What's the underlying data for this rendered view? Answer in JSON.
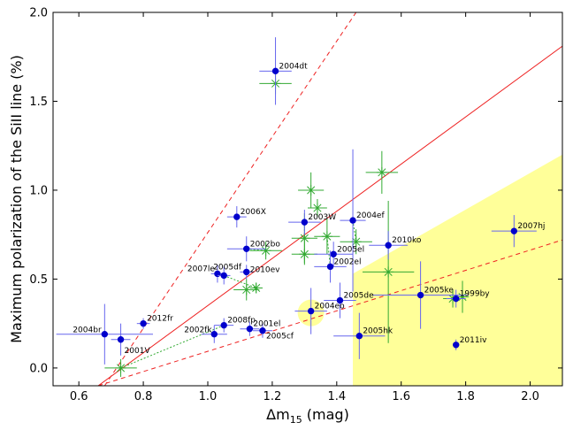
{
  "chart_data": {
    "type": "scatter",
    "xlabel": "Δm",
    "xlabel_sub": "15",
    "xlabel_unit": " (mag)",
    "ylabel": "Maximum polarization of the SiII line (%)",
    "xlim": [
      0.52,
      2.1
    ],
    "ylim": [
      -0.1,
      2.0
    ],
    "xticks": [
      0.6,
      0.8,
      1.0,
      1.2,
      1.4,
      1.6,
      1.8,
      2.0
    ],
    "yticks": [
      0.0,
      0.5,
      1.0,
      1.5,
      2.0
    ],
    "xtick_labels": [
      "0.6",
      "0.8",
      "1.0",
      "1.2",
      "1.4",
      "1.6",
      "1.8",
      "2.0"
    ],
    "ytick_labels": [
      "0.0",
      "0.5",
      "1.0",
      "1.5",
      "2.0"
    ],
    "colors": {
      "blue": "#0000cc",
      "blue_err": "#6666ee",
      "green": "#33aa33",
      "red": "#ee2222",
      "yellow": "#ffff99"
    },
    "lines": [
      {
        "name": "fit",
        "style": "solid",
        "x": [
          0.66,
          2.1
        ],
        "y": [
          -0.1,
          1.81
        ]
      },
      {
        "name": "upper",
        "style": "dashed",
        "x": [
          0.68,
          1.46
        ],
        "y": [
          -0.1,
          2.0
        ]
      },
      {
        "name": "lower",
        "style": "dashed",
        "x": [
          0.66,
          2.1
        ],
        "y": [
          -0.1,
          0.72
        ]
      }
    ],
    "region": {
      "x": [
        1.45,
        2.1,
        2.1,
        1.45
      ],
      "y": [
        -0.1,
        -0.1,
        1.2,
        0.53
      ]
    },
    "circle": {
      "x": 1.32,
      "y": 0.31
    },
    "points": [
      {
        "name": "2004dt",
        "x": 1.21,
        "y": 1.67,
        "xerr": 0.05,
        "yerr": 0.19
      },
      {
        "name": "2006X",
        "x": 1.09,
        "y": 0.85,
        "xerr": 0.03,
        "yerr": 0.06
      },
      {
        "name": "2003W",
        "x": 1.3,
        "y": 0.82,
        "xerr": 0.05,
        "yerr": 0.07
      },
      {
        "name": "2004ef",
        "x": 1.45,
        "y": 0.83,
        "xerr": 0.04,
        "yerr": 0.4
      },
      {
        "name": "2002bo",
        "x": 1.12,
        "y": 0.67,
        "xerr": 0.06,
        "yerr": 0.07
      },
      {
        "name": "2005el",
        "x": 1.39,
        "y": 0.64,
        "xerr": 0.06,
        "yerr": 0.07
      },
      {
        "name": "2002el",
        "x": 1.38,
        "y": 0.57,
        "xerr": 0.05,
        "yerr": 0.09
      },
      {
        "name": "2010ko",
        "x": 1.56,
        "y": 0.69,
        "xerr": 0.06,
        "yerr": 0.08
      },
      {
        "name": "2007hj",
        "x": 1.95,
        "y": 0.77,
        "xerr": 0.07,
        "yerr": 0.09
      },
      {
        "name": "2007le",
        "x": 1.03,
        "y": 0.53,
        "xerr": 0.02,
        "yerr": 0.05
      },
      {
        "name": "2005df",
        "x": 1.05,
        "y": 0.52,
        "xerr": 0.02,
        "yerr": 0.05
      },
      {
        "name": "2010ev",
        "x": 1.12,
        "y": 0.54,
        "xerr": 0.02,
        "yerr": 0.04
      },
      {
        "name": "2005ke",
        "x": 1.66,
        "y": 0.41,
        "xerr": 0.15,
        "yerr": 0.19
      },
      {
        "name": "1999by",
        "x": 1.77,
        "y": 0.39,
        "xerr": 0.03,
        "yerr": 0.05
      },
      {
        "name": "2005de",
        "x": 1.41,
        "y": 0.38,
        "xerr": 0.05,
        "yerr": 0.1
      },
      {
        "name": "2004eo",
        "x": 1.32,
        "y": 0.32,
        "xerr": 0.05,
        "yerr": 0.13
      },
      {
        "name": "2012fr",
        "x": 0.8,
        "y": 0.25,
        "xerr": 0.02,
        "yerr": 0.03
      },
      {
        "name": "2004br",
        "x": 0.68,
        "y": 0.19,
        "xerr": 0.15,
        "yerr": 0.17
      },
      {
        "name": "2001V",
        "x": 0.73,
        "y": 0.16,
        "xerr": 0.03,
        "yerr": 0.09
      },
      {
        "name": "2008fp",
        "x": 1.05,
        "y": 0.24,
        "xerr": 0.03,
        "yerr": 0.04
      },
      {
        "name": "2002fk",
        "x": 1.02,
        "y": 0.19,
        "xerr": 0.04,
        "yerr": 0.05
      },
      {
        "name": "2001el",
        "x": 1.13,
        "y": 0.22,
        "xerr": 0.03,
        "yerr": 0.04
      },
      {
        "name": "2005cf",
        "x": 1.17,
        "y": 0.21,
        "xerr": 0.03,
        "yerr": 0.04
      },
      {
        "name": "2005hk",
        "x": 1.47,
        "y": 0.18,
        "xerr": 0.08,
        "yerr": 0.13
      },
      {
        "name": "2011iv",
        "x": 1.77,
        "y": 0.13,
        "xerr": 0.01,
        "yerr": 0.03
      }
    ],
    "green_points": [
      {
        "x": 1.21,
        "y": 1.6,
        "xerr": 0.05,
        "yerr": 0.06
      },
      {
        "x": 1.32,
        "y": 1.0,
        "xerr": 0.04,
        "yerr": 0.1
      },
      {
        "x": 1.34,
        "y": 0.9,
        "xerr": 0.03,
        "yerr": 0.05
      },
      {
        "x": 1.54,
        "y": 1.1,
        "xerr": 0.05,
        "yerr": 0.12
      },
      {
        "x": 1.3,
        "y": 0.73,
        "xerr": 0.04,
        "yerr": 0.14
      },
      {
        "x": 1.37,
        "y": 0.74,
        "xerr": 0.04,
        "yerr": 0.1
      },
      {
        "x": 1.3,
        "y": 0.64,
        "xerr": 0.04,
        "yerr": 0.06
      },
      {
        "x": 1.18,
        "y": 0.66,
        "xerr": 0.05,
        "yerr": 0.05
      },
      {
        "x": 1.46,
        "y": 0.71,
        "xerr": 0.05,
        "yerr": 0.07
      },
      {
        "x": 1.56,
        "y": 0.54,
        "xerr": 0.08,
        "yerr": 0.4
      },
      {
        "x": 1.12,
        "y": 0.44,
        "xerr": 0.04,
        "yerr": 0.06
      },
      {
        "x": 1.15,
        "y": 0.45,
        "xerr": 0.02,
        "yerr": 0.03
      },
      {
        "x": 0.73,
        "y": 0.0,
        "xerr": 0.05,
        "yerr": 0.05
      },
      {
        "x": 1.76,
        "y": 0.39,
        "xerr": 0.03,
        "yerr": 0.05
      },
      {
        "x": 1.79,
        "y": 0.4,
        "xerr": 0.02,
        "yerr": 0.09
      }
    ],
    "links": [
      [
        0,
        0
      ],
      [
        4,
        7
      ],
      [
        2,
        4
      ],
      [
        6,
        5
      ],
      [
        3,
        8
      ],
      [
        10,
        11
      ],
      [
        19,
        12
      ],
      [
        13,
        13
      ]
    ]
  }
}
